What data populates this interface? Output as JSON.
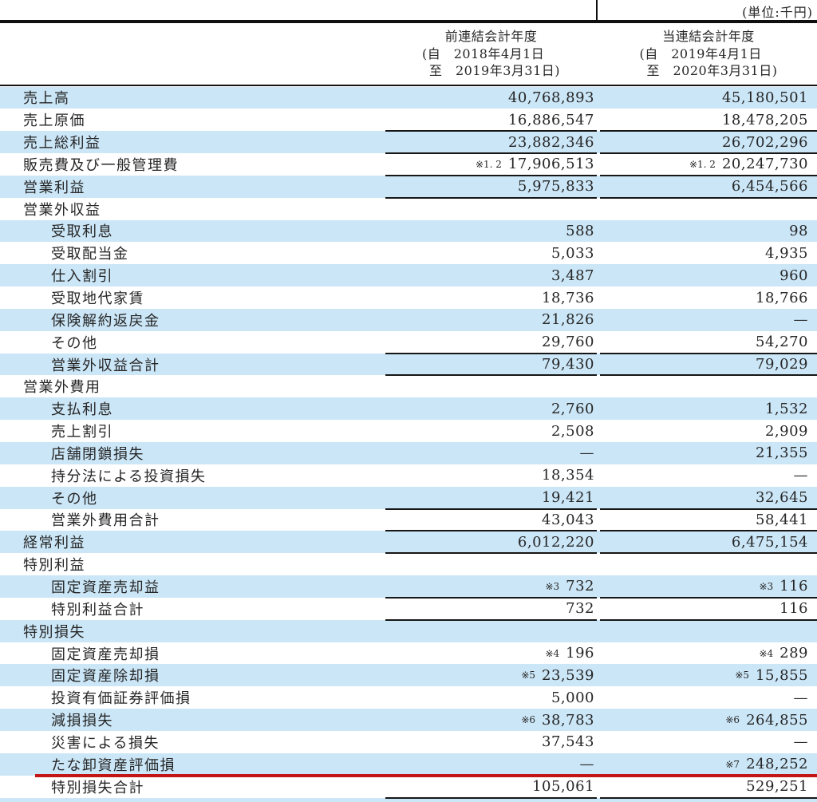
{
  "unit_note": "(単位:千円)",
  "columns": [
    {
      "title": "前連結会計年度",
      "period_from": "(自　2018年4月1日",
      "period_to": "至　2019年3月31日)"
    },
    {
      "title": "当連結会計年度",
      "period_from": "(自　2019年4月1日",
      "period_to": "至　2020年3月31日)"
    }
  ],
  "rows": [
    {
      "label": "売上高",
      "indent": 0,
      "prev": {
        "value": "40,768,893"
      },
      "curr": {
        "value": "45,180,501"
      },
      "rule": false
    },
    {
      "label": "売上原価",
      "indent": 0,
      "prev": {
        "value": "16,886,547"
      },
      "curr": {
        "value": "18,478,205"
      },
      "rule": true
    },
    {
      "label": "売上総利益",
      "indent": 0,
      "prev": {
        "value": "23,882,346"
      },
      "curr": {
        "value": "26,702,296"
      },
      "rule": true
    },
    {
      "label": "販売費及び一般管理費",
      "indent": 0,
      "prev": {
        "note": "※1. 2",
        "value": "17,906,513"
      },
      "curr": {
        "note": "※1. 2",
        "value": "20,247,730"
      },
      "rule": true
    },
    {
      "label": "営業利益",
      "indent": 0,
      "prev": {
        "value": "5,975,833"
      },
      "curr": {
        "value": "6,454,566"
      },
      "rule": true
    },
    {
      "label": "営業外収益",
      "indent": 0,
      "prev": {},
      "curr": {},
      "rule": false
    },
    {
      "label": "受取利息",
      "indent": 1,
      "prev": {
        "value": "588"
      },
      "curr": {
        "value": "98"
      },
      "rule": false
    },
    {
      "label": "受取配当金",
      "indent": 1,
      "prev": {
        "value": "5,033"
      },
      "curr": {
        "value": "4,935"
      },
      "rule": false
    },
    {
      "label": "仕入割引",
      "indent": 1,
      "prev": {
        "value": "3,487"
      },
      "curr": {
        "value": "960"
      },
      "rule": false
    },
    {
      "label": "受取地代家賃",
      "indent": 1,
      "prev": {
        "value": "18,736"
      },
      "curr": {
        "value": "18,766"
      },
      "rule": false
    },
    {
      "label": "保険解約返戻金",
      "indent": 1,
      "prev": {
        "value": "21,826"
      },
      "curr": {
        "value": "—"
      },
      "rule": false
    },
    {
      "label": "その他",
      "indent": 1,
      "prev": {
        "value": "29,760"
      },
      "curr": {
        "value": "54,270"
      },
      "rule": true
    },
    {
      "label": "営業外収益合計",
      "indent": 1,
      "prev": {
        "value": "79,430"
      },
      "curr": {
        "value": "79,029"
      },
      "rule": true
    },
    {
      "label": "営業外費用",
      "indent": 0,
      "prev": {},
      "curr": {},
      "rule": false
    },
    {
      "label": "支払利息",
      "indent": 1,
      "prev": {
        "value": "2,760"
      },
      "curr": {
        "value": "1,532"
      },
      "rule": false
    },
    {
      "label": "売上割引",
      "indent": 1,
      "prev": {
        "value": "2,508"
      },
      "curr": {
        "value": "2,909"
      },
      "rule": false
    },
    {
      "label": "店舗閉鎖損失",
      "indent": 1,
      "prev": {
        "value": "—"
      },
      "curr": {
        "value": "21,355"
      },
      "rule": false
    },
    {
      "label": "持分法による投資損失",
      "indent": 1,
      "prev": {
        "value": "18,354"
      },
      "curr": {
        "value": "—"
      },
      "rule": false
    },
    {
      "label": "その他",
      "indent": 1,
      "prev": {
        "value": "19,421"
      },
      "curr": {
        "value": "32,645"
      },
      "rule": true
    },
    {
      "label": "営業外費用合計",
      "indent": 1,
      "prev": {
        "value": "43,043"
      },
      "curr": {
        "value": "58,441"
      },
      "rule": true
    },
    {
      "label": "経常利益",
      "indent": 0,
      "prev": {
        "value": "6,012,220"
      },
      "curr": {
        "value": "6,475,154"
      },
      "rule": true
    },
    {
      "label": "特別利益",
      "indent": 0,
      "prev": {},
      "curr": {},
      "rule": false
    },
    {
      "label": "固定資産売却益",
      "indent": 1,
      "prev": {
        "note": "※3",
        "value": "732"
      },
      "curr": {
        "note": "※3",
        "value": "116"
      },
      "rule": true
    },
    {
      "label": "特別利益合計",
      "indent": 1,
      "prev": {
        "value": "732"
      },
      "curr": {
        "value": "116"
      },
      "rule": true
    },
    {
      "label": "特別損失",
      "indent": 0,
      "prev": {},
      "curr": {},
      "rule": false
    },
    {
      "label": "固定資産売却損",
      "indent": 1,
      "prev": {
        "note": "※4",
        "value": "196"
      },
      "curr": {
        "note": "※4",
        "value": "289"
      },
      "rule": false
    },
    {
      "label": "固定資産除却損",
      "indent": 1,
      "prev": {
        "note": "※5",
        "value": "23,539"
      },
      "curr": {
        "note": "※5",
        "value": "15,855"
      },
      "rule": false
    },
    {
      "label": "投資有価証券評価損",
      "indent": 1,
      "prev": {
        "value": "5,000"
      },
      "curr": {
        "value": "—"
      },
      "rule": false
    },
    {
      "label": "減損損失",
      "indent": 1,
      "prev": {
        "note": "※6",
        "value": "38,783"
      },
      "curr": {
        "note": "※6",
        "value": "264,855"
      },
      "rule": false
    },
    {
      "label": "災害による損失",
      "indent": 1,
      "prev": {
        "value": "37,543"
      },
      "curr": {
        "value": "—"
      },
      "rule": false
    },
    {
      "label": "たな卸資産評価損",
      "indent": 1,
      "prev": {
        "value": "—"
      },
      "curr": {
        "note": "※7",
        "value": "248,252"
      },
      "rule": true,
      "red_underline": true
    },
    {
      "label": "特別損失合計",
      "indent": 1,
      "prev": {
        "value": "105,061"
      },
      "curr": {
        "value": "529,251"
      },
      "rule": true
    }
  ],
  "colors": {
    "stripe_blue": "#cbe6f7",
    "rule_black": "#161616",
    "annotation_red": "#c31515"
  }
}
